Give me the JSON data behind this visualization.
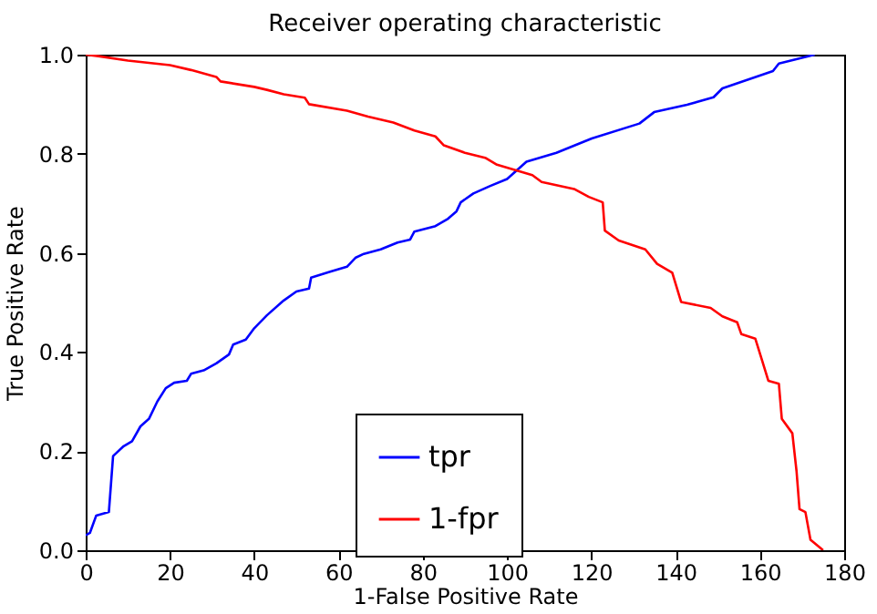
{
  "chart_data": {
    "type": "line",
    "title": "Receiver operating characteristic",
    "xlabel": "1-False Positive Rate",
    "ylabel": "True Positive Rate",
    "xlim": [
      0,
      180
    ],
    "ylim": [
      0,
      1
    ],
    "xticks": [
      0,
      20,
      40,
      60,
      80,
      100,
      120,
      140,
      160,
      180
    ],
    "yticks": [
      {
        "value": 0,
        "label": "0.0"
      },
      {
        "value": 0.2,
        "label": "0.2"
      },
      {
        "value": 0.4,
        "label": "0.4"
      },
      {
        "value": 0.6,
        "label": "0.6"
      },
      {
        "value": 0.8,
        "label": "0.8"
      },
      {
        "value": 1,
        "label": "1.0"
      }
    ],
    "grid": false,
    "legend": "bottom",
    "line_style": "solid",
    "marker": "none",
    "series": [
      {
        "name": "tpr",
        "color": "#0000ff",
        "x": [
          0,
          1,
          2.5,
          5.5,
          6.5,
          9,
          11,
          13,
          15,
          17,
          19,
          21,
          24,
          25,
          28,
          31,
          34,
          35,
          38,
          40,
          43,
          47,
          50,
          53,
          53.5,
          58,
          62,
          64,
          66,
          70,
          74,
          77,
          78,
          83,
          86,
          88,
          89,
          92,
          96,
          100,
          104.6,
          111.7,
          120.1,
          131.4,
          134.9,
          142.7,
          149,
          151.1,
          163.1,
          164.5,
          173
        ],
        "values": [
          0.03,
          0.035,
          0.07,
          0.077,
          0.19,
          0.21,
          0.22,
          0.25,
          0.265,
          0.3,
          0.327,
          0.338,
          0.342,
          0.356,
          0.363,
          0.377,
          0.395,
          0.415,
          0.425,
          0.448,
          0.474,
          0.504,
          0.522,
          0.528,
          0.55,
          0.562,
          0.572,
          0.59,
          0.598,
          0.607,
          0.621,
          0.627,
          0.643,
          0.654,
          0.669,
          0.684,
          0.702,
          0.72,
          0.735,
          0.749,
          0.784,
          0.802,
          0.831,
          0.861,
          0.884,
          0.899,
          0.914,
          0.932,
          0.967,
          0.982,
          1.0
        ]
      },
      {
        "name": "1-fpr",
        "color": "#ff0000",
        "x": [
          0,
          3,
          10,
          20,
          25,
          31,
          32,
          40,
          43,
          47,
          52,
          53,
          62,
          67,
          73,
          78,
          83,
          85,
          90,
          94.8,
          97.6,
          106,
          108.2,
          115.9,
          119.4,
          122.7,
          123.2,
          126.5,
          132.8,
          135.6,
          139.2,
          141.3,
          148.3,
          151.1,
          154.6,
          155.6,
          158.9,
          160.3,
          162,
          164.5,
          165.2,
          167.7,
          168.7,
          169.4,
          170.8,
          172,
          175
        ],
        "values": [
          1.0,
          0.997,
          0.988,
          0.979,
          0.969,
          0.955,
          0.946,
          0.935,
          0.929,
          0.92,
          0.913,
          0.9,
          0.887,
          0.875,
          0.863,
          0.847,
          0.835,
          0.817,
          0.802,
          0.792,
          0.778,
          0.757,
          0.743,
          0.729,
          0.713,
          0.702,
          0.645,
          0.625,
          0.607,
          0.578,
          0.56,
          0.501,
          0.489,
          0.472,
          0.46,
          0.436,
          0.427,
          0.389,
          0.342,
          0.336,
          0.265,
          0.236,
          0.159,
          0.083,
          0.077,
          0.021,
          0.0
        ]
      }
    ]
  }
}
